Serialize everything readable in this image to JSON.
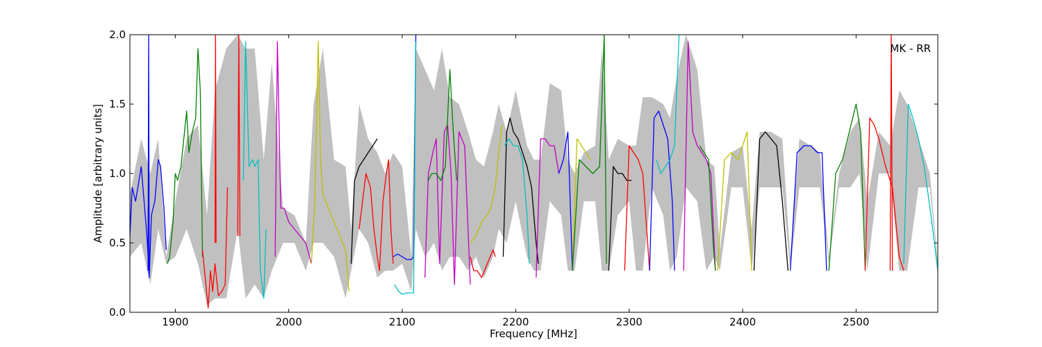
{
  "chart_data": {
    "type": "line",
    "title": "",
    "xlabel": "Frequency [MHz]",
    "ylabel": "Amplitude [arbitrary units]",
    "xlim": [
      1860,
      2572
    ],
    "ylim": [
      0,
      2.0
    ],
    "x_ticks": [
      1900,
      2000,
      2100,
      2200,
      2300,
      2400,
      2500
    ],
    "x_tick_labels": [
      "1900",
      "2000",
      "2100",
      "2200",
      "2300",
      "2400",
      "2500"
    ],
    "y_ticks": [
      0.0,
      0.5,
      1.0,
      1.5,
      2.0
    ],
    "y_tick_labels": [
      "0.0",
      "0.5",
      "1.0",
      "1.5",
      "2.0"
    ],
    "grid": false,
    "annotation": "MK - RR",
    "annotation_position": "top-right",
    "envelope": {
      "color": "#c0c0c0",
      "x": [
        1860,
        1870,
        1878,
        1885,
        1892,
        1900,
        1910,
        1920,
        1928,
        1935,
        1945,
        1955,
        1962,
        1970,
        1978,
        1985,
        1995,
        2005,
        2015,
        2022,
        2030,
        2040,
        2050,
        2055,
        2062,
        2070,
        2078,
        2085,
        2092,
        2100,
        2108,
        2112,
        2120,
        2128,
        2135,
        2142,
        2150,
        2158,
        2165,
        2172,
        2180,
        2185,
        2192,
        2200,
        2210,
        2216,
        2222,
        2230,
        2240,
        2246,
        2252,
        2260,
        2270,
        2276,
        2282,
        2290,
        2300,
        2306,
        2312,
        2320,
        2330,
        2336,
        2342,
        2350,
        2360,
        2368,
        2375,
        2380,
        2390,
        2400,
        2408,
        2415,
        2425,
        2435,
        2442,
        2450,
        2460,
        2468,
        2476,
        2485,
        2495,
        2503,
        2510,
        2520,
        2530,
        2538,
        2545,
        2555,
        2565,
        2572
      ],
      "upper": [
        0.85,
        1.25,
        1.0,
        1.25,
        0.4,
        0.8,
        1.25,
        1.35,
        0.7,
        1.6,
        1.9,
        2.0,
        1.9,
        1.9,
        1.1,
        1.8,
        0.75,
        0.7,
        0.5,
        1.5,
        1.9,
        1.1,
        1.05,
        0.6,
        1.5,
        1.25,
        1.15,
        1.0,
        1.15,
        1.05,
        0.4,
        1.9,
        1.75,
        1.6,
        1.9,
        1.55,
        1.5,
        1.3,
        1.1,
        1.05,
        1.3,
        1.5,
        1.3,
        1.6,
        1.2,
        1.1,
        1.1,
        1.65,
        1.6,
        1.1,
        1.0,
        1.15,
        1.2,
        1.9,
        1.1,
        1.25,
        1.2,
        1.2,
        1.55,
        1.55,
        1.5,
        1.4,
        1.7,
        2.0,
        1.75,
        1.1,
        1.05,
        0.45,
        1.15,
        1.2,
        0.6,
        1.3,
        1.3,
        1.25,
        0.4,
        1.25,
        1.2,
        1.15,
        0.4,
        1.0,
        1.3,
        1.4,
        0.8,
        1.3,
        1.2,
        1.6,
        1.5,
        1.25,
        1.0,
        0.35
      ],
      "lower": [
        0.4,
        0.5,
        0.2,
        0.6,
        0.35,
        0.4,
        0.6,
        0.35,
        0.05,
        0.1,
        0.1,
        0.6,
        0.1,
        0.2,
        0.1,
        0.3,
        0.5,
        0.5,
        0.3,
        0.5,
        0.5,
        0.4,
        0.1,
        0.3,
        0.6,
        0.5,
        0.25,
        0.3,
        0.3,
        0.35,
        0.15,
        0.6,
        0.4,
        0.5,
        0.3,
        0.4,
        0.4,
        0.3,
        0.4,
        0.25,
        0.4,
        0.6,
        0.5,
        0.8,
        0.4,
        0.3,
        0.3,
        0.8,
        0.7,
        0.3,
        0.3,
        0.8,
        0.8,
        0.3,
        0.3,
        0.7,
        0.8,
        0.3,
        0.3,
        0.9,
        0.7,
        0.3,
        0.4,
        0.9,
        0.8,
        0.3,
        0.4,
        0.3,
        0.9,
        0.9,
        0.3,
        0.9,
        0.9,
        0.9,
        0.3,
        0.9,
        0.9,
        0.9,
        0.35,
        0.9,
        0.9,
        1.0,
        0.3,
        1.0,
        1.0,
        0.3,
        0.3,
        0.9,
        0.9,
        0.3
      ]
    },
    "series": [
      {
        "color": "#0000ff",
        "x": [
          1860,
          1862,
          1865,
          1870,
          1872,
          1875,
          1877,
          1879,
          1882,
          1885,
          1887,
          1890,
          1892
        ],
        "values": [
          0.55,
          0.9,
          0.8,
          1.05,
          0.85,
          0.55,
          0.25,
          0.7,
          0.8,
          1.1,
          1.05,
          0.75,
          0.45
        ]
      },
      {
        "color": "#0000ff",
        "x": [
          1876,
          1876.5,
          1877
        ],
        "values": [
          0.3,
          2.0,
          0.3
        ]
      },
      {
        "color": "#008000",
        "x": [
          1893,
          1895,
          1898,
          1900,
          1902,
          1905,
          1910,
          1912,
          1915,
          1918,
          1920,
          1922,
          1924
        ],
        "values": [
          0.35,
          0.4,
          0.65,
          1.0,
          0.95,
          1.05,
          1.45,
          1.15,
          1.3,
          1.4,
          1.9,
          1.6,
          0.4
        ]
      },
      {
        "color": "#ff0000",
        "x": [
          1924,
          1927,
          1929,
          1931,
          1933,
          1935,
          1938,
          1941,
          1944,
          1946
        ],
        "values": [
          0.45,
          0.2,
          0.03,
          0.3,
          0.15,
          0.35,
          0.12,
          0.15,
          0.2,
          0.9
        ]
      },
      {
        "color": "#ff0000",
        "x": [
          1935,
          1935.5,
          1936
        ],
        "values": [
          0.5,
          2.0,
          0.5
        ]
      },
      {
        "color": "#ff0000",
        "x": [
          1955,
          1956,
          1957
        ],
        "values": [
          0.55,
          2.0,
          0.55
        ]
      },
      {
        "color": "#00bfbf",
        "x": [
          1960,
          1962,
          1965,
          1968,
          1970,
          1973,
          1975,
          1978,
          1980
        ],
        "values": [
          0.95,
          1.95,
          1.05,
          1.1,
          1.05,
          1.1,
          0.3,
          0.1,
          0.6
        ]
      },
      {
        "color": "#bf00bf",
        "x": [
          1988,
          1990,
          1993,
          1996,
          2000,
          2005,
          2010,
          2015,
          2020
        ],
        "values": [
          0.4,
          1.95,
          0.75,
          0.75,
          0.65,
          0.6,
          0.55,
          0.5,
          0.35
        ]
      },
      {
        "color": "#bfbf00",
        "x": [
          2020,
          2023,
          2026,
          2028,
          2030,
          2035,
          2040,
          2045,
          2050,
          2053
        ],
        "values": [
          0.35,
          0.8,
          1.95,
          1.1,
          0.85,
          0.75,
          0.65,
          0.55,
          0.45,
          0.15
        ]
      },
      {
        "color": "#000000",
        "x": [
          2055,
          2058,
          2062,
          2066,
          2070,
          2074,
          2078
        ],
        "values": [
          0.35,
          0.95,
          1.05,
          1.1,
          1.15,
          1.2,
          1.25
        ]
      },
      {
        "color": "#ff0000",
        "x": [
          2062,
          2065,
          2068,
          2072,
          2075,
          2078,
          2080,
          2083,
          2086,
          2088,
          2090,
          2092
        ],
        "values": [
          0.6,
          0.8,
          1.0,
          0.9,
          0.6,
          0.4,
          0.3,
          0.8,
          1.0,
          1.1,
          0.6,
          0.35
        ]
      },
      {
        "color": "#0000ff",
        "x": [
          2092,
          2096,
          2100,
          2104,
          2108,
          2110,
          2112
        ],
        "values": [
          0.4,
          0.42,
          0.4,
          0.38,
          0.38,
          0.4,
          2.0
        ]
      },
      {
        "color": "#00bfbf",
        "x": [
          2093,
          2097,
          2100,
          2105,
          2110,
          2112
        ],
        "values": [
          0.2,
          0.15,
          0.13,
          0.14,
          0.14,
          1.95
        ]
      },
      {
        "color": "#bf00bf",
        "x": [
          2120,
          2123,
          2127,
          2130,
          2133,
          2137,
          2140,
          2143,
          2146,
          2150,
          2155,
          2160
        ],
        "values": [
          0.25,
          1.0,
          1.15,
          1.25,
          0.35,
          1.3,
          1.35,
          1.0,
          0.2,
          1.3,
          1.2,
          0.2
        ]
      },
      {
        "color": "#008000",
        "x": [
          2123,
          2126,
          2130,
          2134,
          2138,
          2142,
          2145,
          2148
        ],
        "values": [
          0.95,
          1.0,
          1.0,
          0.95,
          1.05,
          1.75,
          1.3,
          0.95
        ]
      },
      {
        "color": "#ff0000",
        "x": [
          2160,
          2163,
          2166,
          2170,
          2175,
          2180,
          2182
        ],
        "values": [
          0.4,
          0.3,
          0.3,
          0.25,
          0.35,
          0.45,
          0.4
        ]
      },
      {
        "color": "#bfbf00",
        "x": [
          2160,
          2165,
          2170,
          2175,
          2178,
          2182,
          2185,
          2188
        ],
        "values": [
          0.5,
          0.55,
          0.65,
          0.7,
          0.75,
          0.9,
          1.15,
          1.35
        ]
      },
      {
        "color": "#000000",
        "x": [
          2189,
          2192,
          2195,
          2198,
          2202,
          2206,
          2210,
          2214,
          2218,
          2220
        ],
        "values": [
          0.4,
          1.3,
          1.4,
          1.3,
          1.25,
          1.15,
          1.05,
          0.9,
          0.5,
          0.35
        ]
      },
      {
        "color": "#00bfbf",
        "x": [
          2190,
          2194,
          2198,
          2202,
          2206,
          2210,
          2212
        ],
        "values": [
          1.2,
          1.25,
          1.2,
          1.2,
          1.1,
          0.7,
          0.35
        ]
      },
      {
        "color": "#bf00bf",
        "x": [
          2218,
          2222,
          2226,
          2230,
          2234,
          2238
        ],
        "values": [
          0.25,
          1.25,
          1.25,
          1.2,
          1.2,
          1.0
        ]
      },
      {
        "color": "#0000ff",
        "x": [
          2238,
          2242,
          2246,
          2248,
          2250
        ],
        "values": [
          1.0,
          1.1,
          1.3,
          0.8,
          0.3
        ]
      },
      {
        "color": "#bfbf00",
        "x": [
          2250,
          2254,
          2258,
          2262,
          2266
        ],
        "values": [
          0.3,
          1.25,
          1.2,
          1.15,
          1.1
        ]
      },
      {
        "color": "#008000",
        "x": [
          2250,
          2256,
          2262,
          2268,
          2274,
          2278,
          2280
        ],
        "values": [
          0.3,
          1.1,
          1.05,
          1.0,
          1.05,
          2.0,
          0.35
        ]
      },
      {
        "color": "#000000",
        "x": [
          2282,
          2286,
          2290,
          2294,
          2298,
          2302
        ],
        "values": [
          0.3,
          1.05,
          1.0,
          1.0,
          0.95,
          0.95
        ]
      },
      {
        "color": "#ff0000",
        "x": [
          2296,
          2300,
          2304,
          2308,
          2312,
          2318
        ],
        "values": [
          0.3,
          1.2,
          1.15,
          1.1,
          1.0,
          0.3
        ]
      },
      {
        "color": "#0000ff",
        "x": [
          2318,
          2322,
          2326,
          2330,
          2334,
          2338,
          2340
        ],
        "values": [
          0.3,
          1.4,
          1.45,
          1.35,
          1.25,
          0.8,
          0.3
        ]
      },
      {
        "color": "#00bfbf",
        "x": [
          2324,
          2328,
          2332,
          2336,
          2340,
          2344
        ],
        "values": [
          1.1,
          1.0,
          1.05,
          1.1,
          1.2,
          2.0
        ]
      },
      {
        "color": "#bf00bf",
        "x": [
          2348,
          2352,
          2356,
          2360,
          2364,
          2368,
          2372,
          2376
        ],
        "values": [
          0.3,
          1.95,
          1.3,
          1.2,
          1.15,
          1.1,
          1.0,
          0.3
        ]
      },
      {
        "color": "#008000",
        "x": [
          2362,
          2366,
          2370,
          2374,
          2376
        ],
        "values": [
          1.2,
          1.15,
          1.1,
          0.5,
          0.3
        ]
      },
      {
        "color": "#bfbf00",
        "x": [
          2378,
          2384,
          2390,
          2396,
          2400,
          2404,
          2408
        ],
        "values": [
          0.3,
          1.1,
          1.15,
          1.1,
          1.2,
          1.3,
          0.3
        ]
      },
      {
        "color": "#000000",
        "x": [
          2410,
          2415,
          2420,
          2425,
          2430,
          2435,
          2440
        ],
        "values": [
          0.3,
          1.25,
          1.3,
          1.25,
          1.2,
          0.8,
          0.3
        ]
      },
      {
        "color": "#0000ff",
        "x": [
          2442,
          2448,
          2454,
          2460,
          2466,
          2470,
          2474
        ],
        "values": [
          0.3,
          1.15,
          1.2,
          1.2,
          1.15,
          1.15,
          0.3
        ]
      },
      {
        "color": "#008000",
        "x": [
          2476,
          2482,
          2488,
          2494,
          2500,
          2504,
          2508
        ],
        "values": [
          0.3,
          1.0,
          1.1,
          1.3,
          1.5,
          1.3,
          0.3
        ]
      },
      {
        "color": "#ff0000",
        "x": [
          2508,
          2512,
          2516,
          2520,
          2526,
          2532,
          2538,
          2542
        ],
        "values": [
          0.3,
          1.4,
          1.35,
          1.25,
          1.05,
          0.9,
          0.4,
          0.3
        ]
      },
      {
        "color": "#ff0000",
        "x": [
          2530,
          2531,
          2532
        ],
        "values": [
          0.3,
          2.0,
          0.3
        ]
      },
      {
        "color": "#00bfbf",
        "x": [
          2542,
          2546,
          2550,
          2555,
          2560,
          2566,
          2572
        ],
        "values": [
          0.35,
          1.5,
          1.4,
          1.25,
          1.05,
          0.7,
          0.3
        ]
      }
    ]
  }
}
